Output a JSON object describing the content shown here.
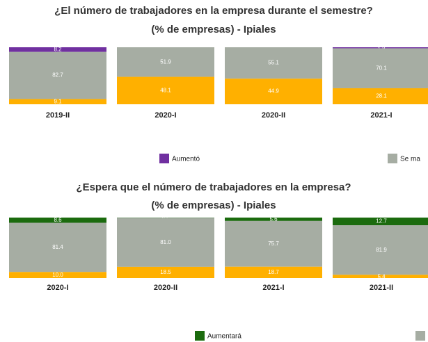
{
  "chart_data": [
    {
      "type": "stacked-bar",
      "title": "¿El número de trabajadores en la empresa durante el semestre?",
      "subtitle": "(% de empresas) - Ipiales",
      "categories": [
        "2019-II",
        "2020-I",
        "2020-II",
        "2021-I"
      ],
      "series": [
        {
          "name": "Aumentó",
          "color": "#7030a0",
          "values": [
            8.2,
            0,
            0,
            1.8
          ],
          "value_labels": [
            "8.2",
            null,
            null,
            "1.8"
          ]
        },
        {
          "name": "Se ma",
          "color": "#a6ada3",
          "values": [
            82.7,
            51.9,
            55.1,
            70.1
          ],
          "value_labels": [
            "82.7",
            "51.9",
            "55.1",
            "70.1"
          ]
        },
        {
          "color": "#ffb000",
          "values": [
            9.1,
            48.1,
            44.9,
            28.1
          ],
          "value_labels": [
            "9.1",
            "48.1",
            "44.9",
            "28.1"
          ]
        }
      ]
    },
    {
      "type": "stacked-bar",
      "title": "¿Espera que el número de trabajadores en la empresa?",
      "subtitle": "(% de empresas) - Ipiales",
      "categories": [
        "2020-I",
        "2020-II",
        "2021-I",
        "2021-II"
      ],
      "series": [
        {
          "name": "Aumentará",
          "color": "#1b6b0e",
          "values": [
            8.6,
            0.5,
            5.6,
            12.7
          ],
          "value_labels": [
            "8.6",
            "0.5",
            "5.6",
            "12.7"
          ]
        },
        {
          "color": "#a6ada3",
          "values": [
            81.4,
            81,
            75.7,
            81.9
          ],
          "value_labels": [
            "81.4",
            "81.0",
            "75.7",
            "81.9"
          ]
        },
        {
          "color": "#ffb000",
          "values": [
            10,
            18.5,
            18.7,
            5.4
          ],
          "value_labels": [
            "10.0",
            "18.5",
            "18.7",
            "5.4"
          ]
        }
      ]
    }
  ]
}
